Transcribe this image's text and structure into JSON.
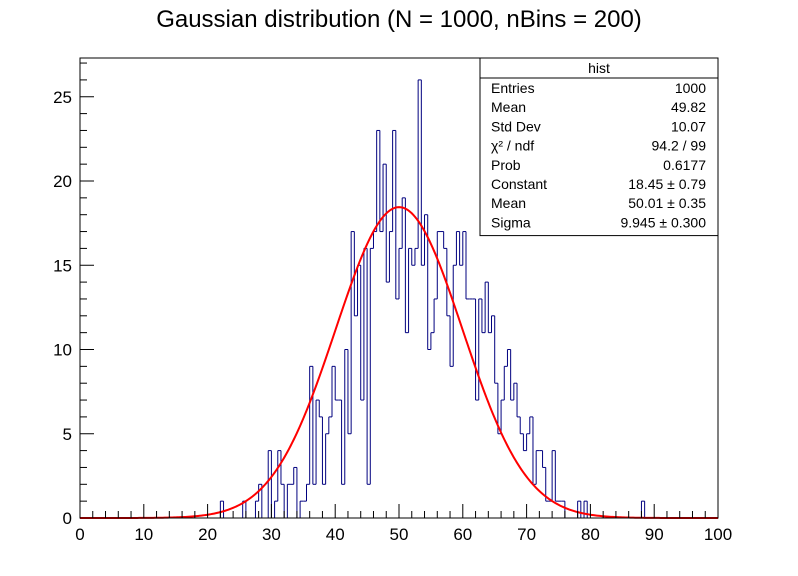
{
  "chart_data": {
    "type": "bar",
    "title": "Gaussian distribution (N = 1000, nBins = 200)",
    "xlabel": "",
    "ylabel": "",
    "xlim": [
      0,
      100
    ],
    "ylim": [
      0,
      27.3
    ],
    "x_ticks": [
      0,
      10,
      20,
      30,
      40,
      50,
      60,
      70,
      80,
      90,
      100
    ],
    "y_ticks": [
      0,
      5,
      10,
      15,
      20,
      25
    ],
    "bin_width": 0.5,
    "bin_start": 0,
    "histogram": {
      "name": "hist",
      "color": "#00007f",
      "counts": [
        0,
        0,
        0,
        0,
        0,
        0,
        0,
        0,
        0,
        0,
        0,
        0,
        0,
        0,
        0,
        0,
        0,
        0,
        0,
        0,
        0,
        0,
        0,
        0,
        0,
        0,
        0,
        0,
        0,
        0,
        0,
        0,
        0,
        0,
        0,
        0,
        0,
        0,
        0,
        0,
        0,
        0,
        0,
        0,
        1,
        0,
        0,
        0,
        0,
        0,
        0,
        1,
        0,
        0,
        0,
        1,
        2,
        0,
        0,
        4,
        0,
        1,
        4,
        2,
        0,
        2,
        2,
        3,
        0,
        1,
        1,
        2,
        9,
        2,
        7,
        6,
        2,
        5,
        6,
        9,
        7,
        7,
        2,
        10,
        5,
        17,
        12,
        15,
        7,
        16,
        2,
        16,
        17,
        23,
        17,
        21,
        14,
        17,
        23,
        13,
        16,
        19,
        11,
        16,
        15,
        16,
        26,
        15,
        18,
        10,
        11,
        13,
        17,
        17,
        16,
        12,
        9,
        15,
        17,
        15,
        17,
        13,
        13,
        13,
        7,
        13,
        11,
        14,
        11,
        12,
        8,
        5,
        7,
        9,
        10,
        7,
        8,
        6,
        5,
        4,
        5,
        6,
        2,
        4,
        4,
        3,
        1,
        1,
        4,
        1,
        1,
        1,
        0,
        0,
        0,
        0,
        1,
        0,
        1,
        0,
        0,
        0,
        0,
        0,
        0,
        0,
        0,
        0,
        0,
        0,
        0,
        0,
        0,
        0,
        0,
        0,
        1,
        0,
        0,
        0,
        0,
        0,
        0,
        0,
        0,
        0,
        0,
        0,
        0,
        0,
        0,
        0,
        0,
        0,
        0,
        0,
        0,
        0,
        0,
        0
      ]
    },
    "fit": {
      "name": "Gaussian fit",
      "color": "#ff0000",
      "constant": 18.45,
      "mean": 50.01,
      "sigma": 9.945
    },
    "stats_box": {
      "title": "hist",
      "legend_position": "top-right",
      "rows": [
        {
          "label": "Entries",
          "value": "1000"
        },
        {
          "label": "Mean",
          "value": "49.82"
        },
        {
          "label": "Std Dev",
          "value": "10.07"
        },
        {
          "label": "χ² / ndf",
          "value": "94.2 / 99"
        },
        {
          "label": "Prob",
          "value": "0.6177"
        },
        {
          "label": "Constant",
          "value": "18.45 ± 0.79"
        },
        {
          "label": "Mean",
          "value": "50.01 ± 0.35"
        },
        {
          "label": "Sigma",
          "value": "9.945 ± 0.300"
        }
      ]
    }
  }
}
